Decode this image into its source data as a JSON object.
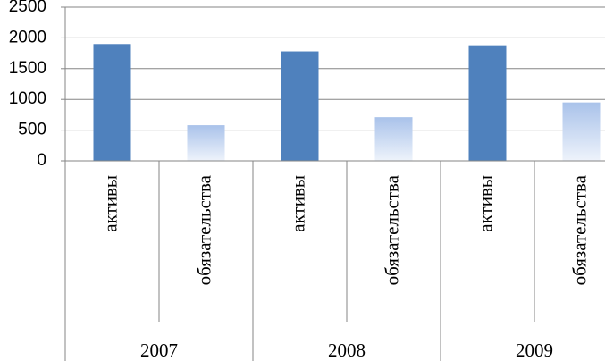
{
  "chart_data": {
    "type": "bar",
    "groups": [
      "2007",
      "2008",
      "2009"
    ],
    "categories": [
      "активы",
      "обязательства",
      "активы",
      "обязательства",
      "активы",
      "обязательства"
    ],
    "values": [
      1900,
      580,
      1780,
      710,
      1880,
      950
    ],
    "colors": [
      "#4f81bd",
      "#a9c2ea",
      "#4f81bd",
      "#a9c2ea",
      "#4f81bd",
      "#a9c2ea"
    ],
    "gradient": [
      false,
      true,
      false,
      true,
      false,
      true
    ],
    "ylim": [
      0,
      2500
    ],
    "yticks": [
      0,
      500,
      1000,
      1500,
      2000,
      2500
    ],
    "grid": true
  }
}
